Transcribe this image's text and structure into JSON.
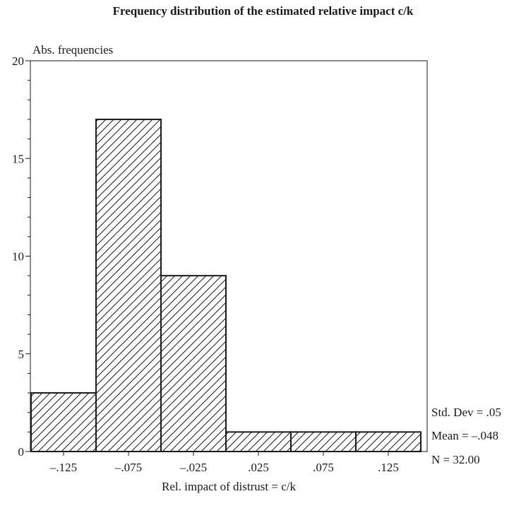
{
  "chart_data": {
    "type": "bar",
    "title": "Frequency distribution of the estimated relative impact c/k",
    "xlabel": "Rel. impact of distrust = c/k",
    "ylabel": "Abs. frequencies",
    "categories": [
      "–.125",
      "–.075",
      "–.025",
      ".025",
      ".075",
      ".125"
    ],
    "values": [
      3,
      17,
      9,
      1,
      1,
      1
    ],
    "ylim": [
      0,
      20
    ],
    "yticks": [
      0,
      5,
      10,
      15,
      20
    ],
    "bar_fill": "diagonal hatching",
    "stats": {
      "std_dev": "Std. Dev = .05",
      "mean": "Mean = –.048",
      "n": "N = 32.00"
    },
    "grid": false
  }
}
